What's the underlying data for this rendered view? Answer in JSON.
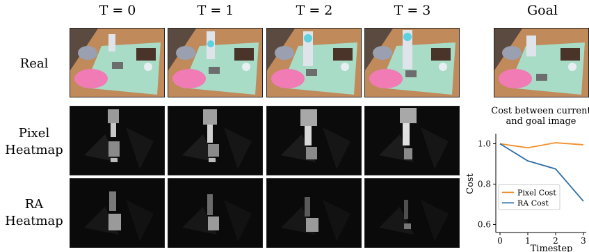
{
  "columns": [
    "T = 0",
    "T = 1",
    "T = 2",
    "T = 3",
    "Goal"
  ],
  "rows": {
    "real": [
      "Real"
    ],
    "pixel": [
      "Pixel",
      "Heatmap"
    ],
    "ra": [
      "RA",
      "Heatmap"
    ]
  },
  "colors": {
    "pixel": "#f28e2b",
    "ra": "#2a6ea6",
    "table": "#a8dcc7",
    "wood": "#c08a5a"
  },
  "chart_data": {
    "type": "line",
    "title_lines": [
      "Cost between current",
      "and goal image"
    ],
    "xlabel": "Timestep",
    "ylabel": "Cost",
    "x": [
      0,
      1,
      2,
      3
    ],
    "xticks": [
      "0",
      "1",
      "2",
      "3"
    ],
    "yticks": [
      "0.6",
      "0.8",
      "1.0"
    ],
    "ytick_values": [
      0.6,
      0.8,
      1.0
    ],
    "xlim": [
      -0.15,
      3.1
    ],
    "ylim": [
      0.56,
      1.05
    ],
    "series": [
      {
        "name": "Pixel Cost",
        "color": "#f28e2b",
        "values": [
          1.0,
          0.98,
          1.005,
          0.995
        ]
      },
      {
        "name": "RA Cost",
        "color": "#2a6ea6",
        "values": [
          1.0,
          0.915,
          0.875,
          0.715
        ]
      }
    ],
    "legend": "lower-left",
    "grid": false
  }
}
